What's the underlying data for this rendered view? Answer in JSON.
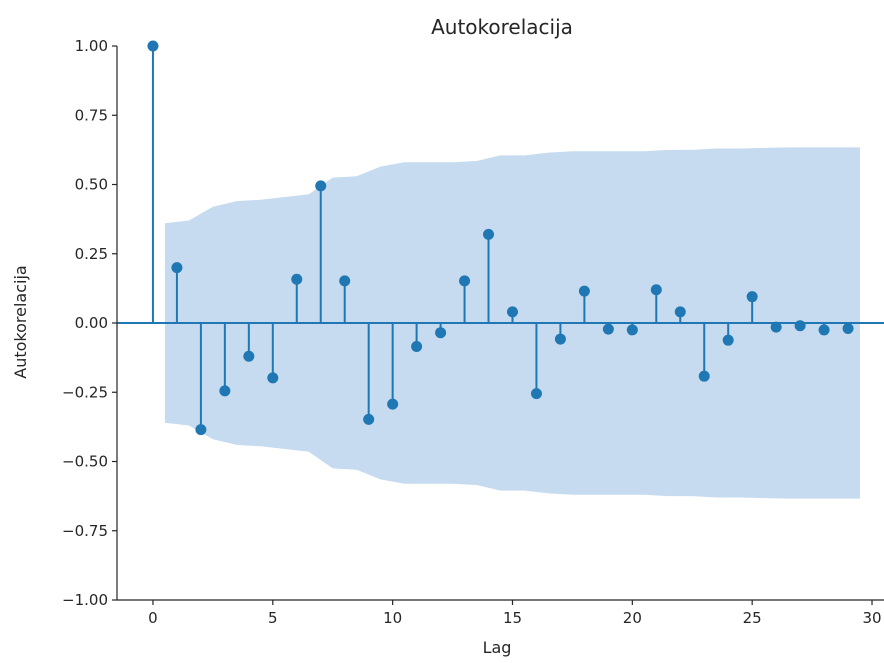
{
  "chart_data": {
    "type": "stem",
    "title": "Autokorelacija",
    "xlabel": "Lag",
    "ylabel": "Autokorelacija",
    "xlim": [
      -1.5,
      30.5
    ],
    "ylim": [
      -1.0,
      1.0
    ],
    "xticks": [
      0,
      5,
      10,
      15,
      20,
      25,
      30
    ],
    "xtick_labels": [
      "0",
      "5",
      "10",
      "15",
      "20",
      "25",
      "30"
    ],
    "yticks": [
      -1.0,
      -0.75,
      -0.5,
      -0.25,
      0.0,
      0.25,
      0.5,
      0.75,
      1.0
    ],
    "ytick_labels": [
      "−1.00",
      "−0.75",
      "−0.50",
      "−0.25",
      "0.00",
      "0.25",
      "0.50",
      "0.75",
      "1.00"
    ],
    "grid": false,
    "colors": {
      "stem": "#1f77b4",
      "band": "#c6dbef"
    },
    "lags": [
      0,
      1,
      2,
      3,
      4,
      5,
      6,
      7,
      8,
      9,
      10,
      11,
      12,
      13,
      14,
      15,
      16,
      17,
      18,
      19,
      20,
      21,
      22,
      23,
      24,
      25,
      26,
      27,
      28,
      29
    ],
    "values": [
      1.0,
      0.2,
      -0.385,
      -0.245,
      -0.12,
      -0.198,
      0.158,
      0.495,
      0.152,
      -0.348,
      -0.293,
      -0.085,
      -0.035,
      0.152,
      0.32,
      0.04,
      -0.255,
      -0.058,
      0.115,
      -0.022,
      -0.025,
      0.12,
      0.04,
      -0.192,
      -0.062,
      0.095,
      -0.015,
      -0.01,
      -0.025,
      -0.02
    ],
    "confidence_band": {
      "x": [
        0.5,
        1.5,
        2.5,
        3.5,
        4.5,
        5.5,
        6.5,
        7.5,
        8.5,
        9.5,
        10.5,
        11.5,
        12.5,
        13.5,
        14.5,
        15.5,
        16.5,
        17.5,
        18.5,
        19.5,
        20.5,
        21.5,
        22.5,
        23.5,
        24.5,
        25.5,
        26.5,
        27.5,
        28.5,
        29.5
      ],
      "upper": [
        0.36,
        0.37,
        0.42,
        0.44,
        0.445,
        0.455,
        0.465,
        0.525,
        0.53,
        0.565,
        0.58,
        0.58,
        0.58,
        0.585,
        0.605,
        0.605,
        0.615,
        0.62,
        0.62,
        0.62,
        0.62,
        0.625,
        0.625,
        0.63,
        0.63,
        0.632,
        0.634,
        0.634,
        0.634,
        0.634
      ]
    }
  }
}
